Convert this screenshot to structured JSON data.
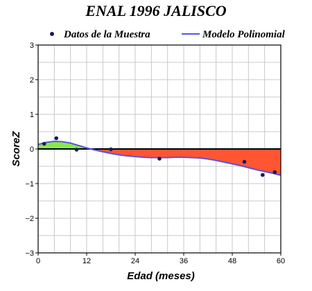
{
  "chart_data": {
    "type": "line",
    "title": "ENAL 1996 JALISCO",
    "xlabel": "Edad (meses)",
    "ylabel": "ScoreZ",
    "xlim": [
      0,
      60
    ],
    "ylim": [
      -3,
      3
    ],
    "x_ticks": [
      0,
      12,
      24,
      36,
      48,
      60
    ],
    "y_ticks": [
      -3,
      -2,
      -1,
      0,
      1,
      2,
      3
    ],
    "x_tick_labels": [
      "0",
      "12",
      "24",
      "36",
      "48",
      "60"
    ],
    "y_tick_labels": [
      "−3",
      "−2",
      "−1",
      "0",
      "1",
      "2",
      "3"
    ],
    "grid": true,
    "legend_position": "top",
    "series": [
      {
        "name": "Datos de la Muestra",
        "kind": "scatter",
        "color": "#1a1a5e",
        "points": [
          {
            "x": 1.5,
            "y": 0.15
          },
          {
            "x": 4.5,
            "y": 0.31
          },
          {
            "x": 9.5,
            "y": -0.02
          },
          {
            "x": 18,
            "y": -0.01
          },
          {
            "x": 30,
            "y": -0.28
          },
          {
            "x": 51,
            "y": -0.37
          },
          {
            "x": 55.5,
            "y": -0.75
          },
          {
            "x": 58.5,
            "y": -0.67
          }
        ]
      },
      {
        "name": "Modelo Polinomial",
        "kind": "line",
        "color": "#5555dd",
        "points": [
          {
            "x": 0,
            "y": 0.13
          },
          {
            "x": 2,
            "y": 0.19
          },
          {
            "x": 4,
            "y": 0.22
          },
          {
            "x": 6,
            "y": 0.21
          },
          {
            "x": 8,
            "y": 0.17
          },
          {
            "x": 10,
            "y": 0.1
          },
          {
            "x": 12,
            "y": 0.03
          },
          {
            "x": 14,
            "y": -0.03
          },
          {
            "x": 16,
            "y": -0.08
          },
          {
            "x": 18,
            "y": -0.13
          },
          {
            "x": 20,
            "y": -0.17
          },
          {
            "x": 22,
            "y": -0.2
          },
          {
            "x": 24,
            "y": -0.22
          },
          {
            "x": 26,
            "y": -0.24
          },
          {
            "x": 28,
            "y": -0.25
          },
          {
            "x": 30,
            "y": -0.25
          },
          {
            "x": 32,
            "y": -0.25
          },
          {
            "x": 34,
            "y": -0.24
          },
          {
            "x": 36,
            "y": -0.24
          },
          {
            "x": 38,
            "y": -0.25
          },
          {
            "x": 40,
            "y": -0.26
          },
          {
            "x": 42,
            "y": -0.29
          },
          {
            "x": 44,
            "y": -0.33
          },
          {
            "x": 46,
            "y": -0.38
          },
          {
            "x": 48,
            "y": -0.43
          },
          {
            "x": 50,
            "y": -0.48
          },
          {
            "x": 52,
            "y": -0.54
          },
          {
            "x": 54,
            "y": -0.6
          },
          {
            "x": 56,
            "y": -0.65
          },
          {
            "x": 58,
            "y": -0.7
          },
          {
            "x": 60,
            "y": -0.76
          }
        ]
      }
    ],
    "fill_colors": {
      "positive": "#88e84a",
      "negative": "#ff5533"
    }
  }
}
